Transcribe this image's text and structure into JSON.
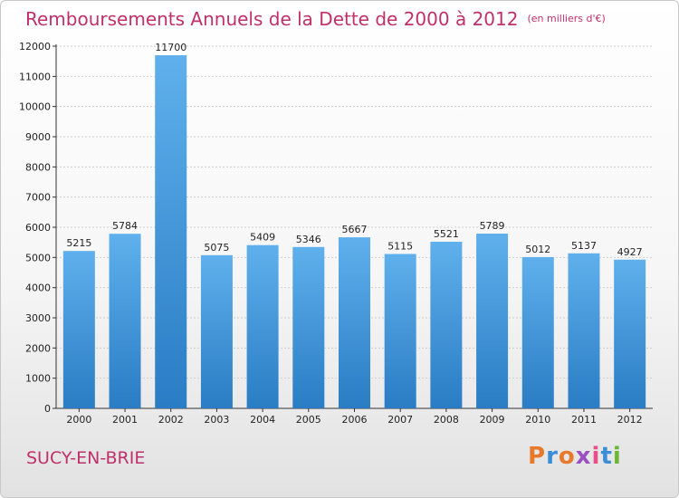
{
  "header": {
    "title": "Remboursements Annuels de la Dette de 2000 à 2012",
    "subtitle": "(en milliers d'€)"
  },
  "footer": {
    "city": "SUCY-EN-BRIE",
    "logo": "Proxiti",
    "logo_colors": [
      "#e8792a",
      "#3a8ed8",
      "#e8792a",
      "#9a4fc0",
      "#e84f8a",
      "#3a8ed8",
      "#6ab832"
    ]
  },
  "colors": {
    "bar_top": "#5fb0ec",
    "bar_bottom": "#2a7cc4",
    "title": "#c0306a"
  },
  "chart_data": {
    "type": "bar",
    "title": "Remboursements Annuels de la Dette de 2000 à 2012",
    "categories": [
      "2000",
      "2001",
      "2002",
      "2003",
      "2004",
      "2005",
      "2006",
      "2007",
      "2008",
      "2009",
      "2010",
      "2011",
      "2012"
    ],
    "values": [
      5215,
      5784,
      11700,
      5075,
      5409,
      5346,
      5667,
      5115,
      5521,
      5789,
      5012,
      5137,
      4927
    ],
    "data_labels": [
      "5215",
      "5784",
      "11700",
      "5075",
      "5409",
      "5346",
      "5667",
      "5115",
      "5521",
      "5789",
      "5012",
      "5137",
      "4927"
    ],
    "yticks": [
      0,
      1000,
      2000,
      3000,
      4000,
      5000,
      6000,
      7000,
      8000,
      9000,
      10000,
      11000,
      12000
    ],
    "ylim": [
      0,
      12000
    ],
    "grid": true,
    "legend": "none"
  }
}
